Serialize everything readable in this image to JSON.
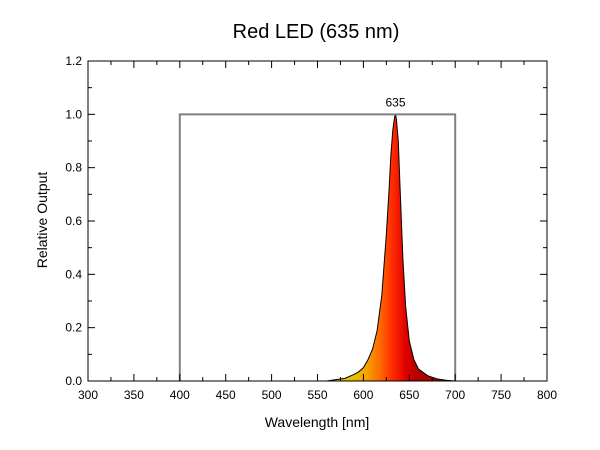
{
  "chart_data": {
    "type": "area",
    "title": "Red LED (635 nm)",
    "xlabel": "Wavelength [nm]",
    "ylabel": "Relative Output",
    "xlim": [
      300,
      800
    ],
    "ylim": [
      0,
      1.2
    ],
    "x_ticks": [
      300,
      350,
      400,
      450,
      500,
      550,
      600,
      650,
      700,
      750,
      800
    ],
    "y_ticks": [
      0.0,
      0.2,
      0.4,
      0.6,
      0.8,
      1.0,
      1.2
    ],
    "y_tick_labels": [
      "0.0",
      "0.2",
      "0.4",
      "0.6",
      "0.8",
      "1.0",
      "1.2"
    ],
    "grid": false,
    "peak_annotation": "635",
    "spectrum": {
      "x": [
        560,
        570,
        580,
        590,
        595,
        600,
        605,
        610,
        615,
        620,
        625,
        628,
        630,
        632,
        634,
        635,
        636,
        638,
        640,
        643,
        646,
        650,
        655,
        660,
        670,
        680,
        690,
        700
      ],
      "y": [
        0.0,
        0.005,
        0.01,
        0.025,
        0.035,
        0.05,
        0.08,
        0.12,
        0.19,
        0.32,
        0.55,
        0.72,
        0.85,
        0.94,
        0.99,
        1.0,
        0.98,
        0.9,
        0.72,
        0.46,
        0.28,
        0.15,
        0.08,
        0.045,
        0.02,
        0.008,
        0.003,
        0.0
      ],
      "fill_gradient": [
        "#e8c000",
        "#f5a000",
        "#ff6a00",
        "#ff2a00",
        "#e00000",
        "#b00000"
      ]
    },
    "range_box": {
      "x": [
        400,
        700
      ],
      "y": 1.0,
      "color": "#808080"
    }
  }
}
